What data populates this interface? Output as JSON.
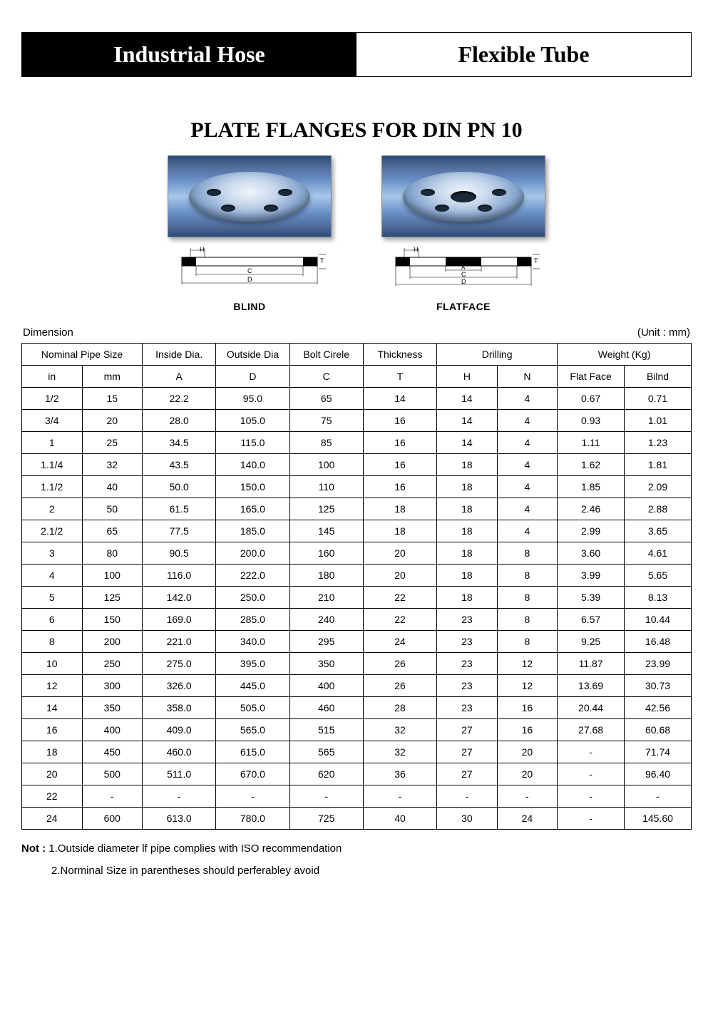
{
  "header": {
    "left": "Industrial Hose",
    "right": "Flexible Tube"
  },
  "title": "PLATE FLANGES FOR DIN PN 10",
  "images": {
    "left_label": "BLIND",
    "right_label": "FLATFACE"
  },
  "table_meta": {
    "dimension_label": "Dimension",
    "unit_label": "(Unit : mm)"
  },
  "table": {
    "header_top": [
      "Nominal Pipe Size",
      "Inside Dia.",
      "Outside Dia",
      "Bolt Cirele",
      "Thickness",
      "Drilling",
      "Weight (Kg)"
    ],
    "header_sub": [
      "in",
      "mm",
      "A",
      "D",
      "C",
      "T",
      "H",
      "N",
      "Flat Face",
      "Bilnd"
    ],
    "rows": [
      [
        "1/2",
        "15",
        "22.2",
        "95.0",
        "65",
        "14",
        "14",
        "4",
        "0.67",
        "0.71"
      ],
      [
        "3/4",
        "20",
        "28.0",
        "105.0",
        "75",
        "16",
        "14",
        "4",
        "0.93",
        "1.01"
      ],
      [
        "1",
        "25",
        "34.5",
        "115.0",
        "85",
        "16",
        "14",
        "4",
        "1.11",
        "1.23"
      ],
      [
        "1.1/4",
        "32",
        "43.5",
        "140.0",
        "100",
        "16",
        "18",
        "4",
        "1.62",
        "1.81"
      ],
      [
        "1.1/2",
        "40",
        "50.0",
        "150.0",
        "110",
        "16",
        "18",
        "4",
        "1.85",
        "2.09"
      ],
      [
        "2",
        "50",
        "61.5",
        "165.0",
        "125",
        "18",
        "18",
        "4",
        "2.46",
        "2.88"
      ],
      [
        "2.1/2",
        "65",
        "77.5",
        "185.0",
        "145",
        "18",
        "18",
        "4",
        "2.99",
        "3.65"
      ],
      [
        "3",
        "80",
        "90.5",
        "200.0",
        "160",
        "20",
        "18",
        "8",
        "3.60",
        "4.61"
      ],
      [
        "4",
        "100",
        "116.0",
        "222.0",
        "180",
        "20",
        "18",
        "8",
        "3.99",
        "5.65"
      ],
      [
        "5",
        "125",
        "142.0",
        "250.0",
        "210",
        "22",
        "18",
        "8",
        "5.39",
        "8.13"
      ],
      [
        "6",
        "150",
        "169.0",
        "285.0",
        "240",
        "22",
        "23",
        "8",
        "6.57",
        "10.44"
      ],
      [
        "8",
        "200",
        "221.0",
        "340.0",
        "295",
        "24",
        "23",
        "8",
        "9.25",
        "16.48"
      ],
      [
        "10",
        "250",
        "275.0",
        "395.0",
        "350",
        "26",
        "23",
        "12",
        "11.87",
        "23.99"
      ],
      [
        "12",
        "300",
        "326.0",
        "445.0",
        "400",
        "26",
        "23",
        "12",
        "13.69",
        "30.73"
      ],
      [
        "14",
        "350",
        "358.0",
        "505.0",
        "460",
        "28",
        "23",
        "16",
        "20.44",
        "42.56"
      ],
      [
        "16",
        "400",
        "409.0",
        "565.0",
        "515",
        "32",
        "27",
        "16",
        "27.68",
        "60.68"
      ],
      [
        "18",
        "450",
        "460.0",
        "615.0",
        "565",
        "32",
        "27",
        "20",
        "-",
        "71.74"
      ],
      [
        "20",
        "500",
        "511.0",
        "670.0",
        "620",
        "36",
        "27",
        "20",
        "-",
        "96.40"
      ],
      [
        "22",
        "-",
        "-",
        "-",
        "-",
        "-",
        "-",
        "-",
        "-",
        "-"
      ],
      [
        "24",
        "600",
        "613.0",
        "780.0",
        "725",
        "40",
        "30",
        "24",
        "-",
        "145.60"
      ]
    ],
    "col_widths": [
      "9%",
      "9%",
      "11%",
      "11%",
      "11%",
      "11%",
      "9%",
      "9%",
      "10%",
      "10%"
    ]
  },
  "notes": {
    "prefix": "Not :",
    "line1": "1.Outside diameter lf pipe complies with ISO recommendation",
    "line2": "2.Norminal Size in parentheses should perferabley avoid"
  },
  "colors": {
    "black": "#000000",
    "white": "#ffffff",
    "photo_tint": "#6a90c8",
    "border": "#000000"
  },
  "typography": {
    "header_font": "Times New Roman",
    "body_font": "Arial",
    "header_size_pt": 24,
    "title_size_pt": 22,
    "table_size_pt": 11
  }
}
